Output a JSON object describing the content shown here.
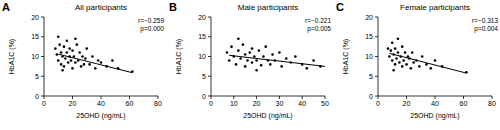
{
  "chart_data": [
    {
      "type": "scatter",
      "label": "A",
      "title": "All participants",
      "x_label": "25OHD (ng/mL)",
      "y_label": "HbA1C (%)",
      "annotations": [
        "r=−0.259",
        "p=0.000"
      ],
      "xlim": [
        0,
        80
      ],
      "xticks": [
        0,
        20,
        40,
        60,
        80
      ],
      "ylim": [
        0,
        20
      ],
      "yticks": [
        0,
        5,
        10,
        15,
        20
      ],
      "grid": false,
      "series": [
        {
          "type": "scatter",
          "marker": "circle",
          "color": "#000000",
          "x": [
            8,
            9,
            10,
            11,
            12,
            12,
            13,
            14,
            14,
            15,
            16,
            16,
            17,
            18,
            18,
            19,
            20,
            20,
            21,
            22,
            23,
            24,
            25,
            26,
            27,
            28,
            29,
            30,
            32,
            34,
            36,
            38,
            40,
            44,
            48,
            52,
            62,
            10,
            13,
            22
          ],
          "values": [
            12,
            10.5,
            9,
            13,
            11,
            8,
            10,
            12.5,
            7.5,
            9.5,
            11,
            14,
            8.5,
            10,
            12,
            9,
            7,
            11.5,
            10,
            8.5,
            13,
            9,
            11,
            7.5,
            10,
            8,
            9.5,
            12,
            8,
            10,
            7,
            9,
            8.5,
            7.5,
            9,
            7,
            6.2,
            15,
            6.5,
            14.5
          ]
        },
        {
          "type": "line",
          "line_style": "solid",
          "color": "#000000",
          "x": [
            10,
            62
          ],
          "values": [
            10.6,
            5.9
          ]
        }
      ]
    },
    {
      "type": "scatter",
      "label": "B",
      "title": "Male participants",
      "x_label": "25OHD (ng/mL)",
      "y_label": "HbA1C (%)",
      "annotations": [
        "r=−0.221",
        "p=0.005"
      ],
      "xlim": [
        0,
        50
      ],
      "xticks": [
        0,
        10,
        20,
        30,
        40,
        50
      ],
      "ylim": [
        0,
        20
      ],
      "yticks": [
        0,
        5,
        10,
        15,
        20
      ],
      "grid": false,
      "series": [
        {
          "type": "scatter",
          "marker": "circle",
          "color": "#000000",
          "x": [
            7,
            8,
            9,
            10,
            11,
            12,
            13,
            14,
            15,
            15,
            16,
            17,
            18,
            18,
            19,
            20,
            21,
            22,
            23,
            24,
            25,
            26,
            27,
            28,
            30,
            31,
            33,
            35,
            37,
            40,
            42,
            45,
            48,
            12,
            20
          ],
          "values": [
            11,
            9,
            12.5,
            10,
            8,
            11.5,
            9.5,
            13,
            10.5,
            7.5,
            9,
            11,
            12,
            8.5,
            10,
            9,
            11.5,
            7.8,
            10,
            12.5,
            9,
            8,
            10.5,
            9,
            11,
            7.5,
            9.5,
            8.5,
            10,
            8,
            7,
            9,
            7.5,
            14.5,
            6.5
          ]
        },
        {
          "type": "line",
          "line_style": "solid",
          "color": "#000000",
          "x": [
            8,
            50
          ],
          "values": [
            10.3,
            7.5
          ]
        }
      ]
    },
    {
      "type": "scatter",
      "label": "C",
      "title": "Female participants",
      "x_label": "25OHD (ng/mL)",
      "y_label": "HbA1C (%)",
      "annotations": [
        "r=−0.313",
        "p=0.004"
      ],
      "xlim": [
        0,
        80
      ],
      "xticks": [
        0,
        20,
        40,
        60,
        80
      ],
      "ylim": [
        0,
        20
      ],
      "yticks": [
        0,
        5,
        10,
        15,
        20
      ],
      "grid": false,
      "series": [
        {
          "type": "scatter",
          "marker": "circle",
          "color": "#000000",
          "x": [
            7,
            8,
            9,
            10,
            10,
            11,
            12,
            12,
            13,
            14,
            14,
            15,
            16,
            17,
            17,
            18,
            19,
            20,
            21,
            22,
            23,
            24,
            25,
            27,
            29,
            31,
            34,
            37,
            40,
            45,
            62,
            11
          ],
          "values": [
            12,
            10,
            11.5,
            9,
            13.5,
            10.5,
            8,
            12,
            9.5,
            11,
            14.5,
            8.5,
            10,
            12.5,
            7.5,
            9,
            11,
            8,
            10,
            9.5,
            7,
            11,
            8.5,
            9,
            7.5,
            10,
            8,
            7,
            9,
            7.5,
            6,
            6.5
          ]
        },
        {
          "type": "line",
          "line_style": "solid",
          "color": "#000000",
          "x": [
            8,
            62
          ],
          "values": [
            10.8,
            5.8
          ]
        }
      ]
    }
  ]
}
